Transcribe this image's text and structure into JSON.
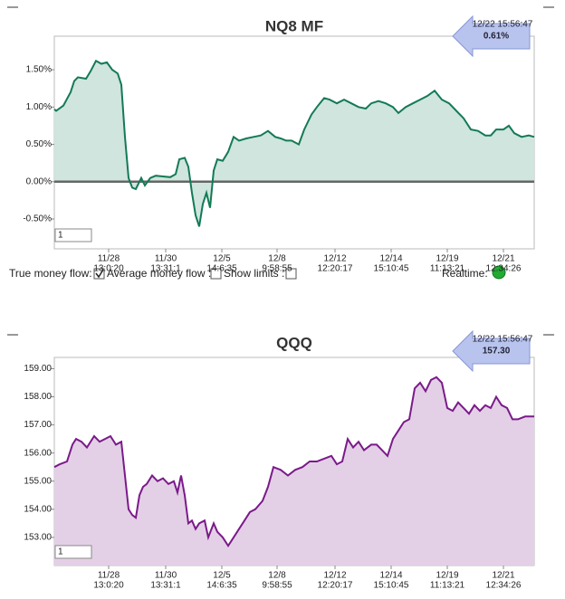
{
  "chart_data": [
    {
      "type": "line",
      "title": "NQ8 MF",
      "color": "#137a55",
      "fill": "#cfe5dd",
      "badge": [
        "12/22 15:56:47",
        "0.61%"
      ],
      "input": "1",
      "xlim": [
        0,
        530
      ],
      "ylim": [
        -0.9,
        1.95
      ],
      "yticks": [
        {
          "value": 1.5,
          "label": "1.50%"
        },
        {
          "value": 1.0,
          "label": "1.00%"
        },
        {
          "value": 0.5,
          "label": "0.50%"
        },
        {
          "value": 0,
          "label": "0.00%"
        },
        {
          "value": -0.5,
          "label": "-0.50%"
        }
      ],
      "xticks": [
        {
          "value": 60,
          "label": "11/28"
        },
        {
          "value": 123,
          "label": "11/30"
        },
        {
          "value": 185,
          "label": "12/5"
        },
        {
          "value": 246,
          "label": "12/8"
        },
        {
          "value": 310,
          "label": "12/12"
        },
        {
          "value": 372,
          "label": "12/14"
        },
        {
          "value": 434,
          "label": "12/19"
        },
        {
          "value": 496,
          "label": "12/21"
        }
      ],
      "xtick_times": [
        "13:0:20",
        "13:31:1",
        "14:6:35",
        "9:58:55",
        "12:20:17",
        "15:10:45",
        "11:13:21",
        "12:34:26"
      ],
      "series": [
        {
          "name": "NQ8 MF",
          "x": [
            0,
            2,
            10,
            18,
            22,
            26,
            35,
            40,
            46,
            52,
            58,
            64,
            70,
            74,
            78,
            82,
            86,
            90,
            96,
            100,
            106,
            112,
            120,
            128,
            134,
            138,
            144,
            148,
            152,
            156,
            160,
            164,
            168,
            172,
            176,
            180,
            186,
            192,
            198,
            204,
            212,
            220,
            228,
            236,
            244,
            250,
            256,
            262,
            270,
            276,
            284,
            290,
            298,
            304,
            312,
            320,
            328,
            336,
            344,
            350,
            358,
            366,
            374,
            380,
            388,
            396,
            404,
            412,
            420,
            428,
            436,
            444,
            452,
            460,
            468,
            476,
            482,
            488,
            496,
            502,
            508,
            516,
            524,
            530
          ],
          "values": [
            0.97,
            0.95,
            1.02,
            1.2,
            1.35,
            1.4,
            1.38,
            1.48,
            1.62,
            1.58,
            1.6,
            1.5,
            1.45,
            1.3,
            0.6,
            0.05,
            -0.08,
            -0.1,
            0.05,
            -0.05,
            0.05,
            0.08,
            0.07,
            0.06,
            0.1,
            0.3,
            0.32,
            0.2,
            -0.15,
            -0.45,
            -0.6,
            -0.3,
            -0.15,
            -0.35,
            0.15,
            0.3,
            0.28,
            0.4,
            0.6,
            0.55,
            0.58,
            0.6,
            0.62,
            0.68,
            0.6,
            0.58,
            0.55,
            0.55,
            0.5,
            0.7,
            0.9,
            1.0,
            1.12,
            1.1,
            1.05,
            1.1,
            1.05,
            1.0,
            0.98,
            1.05,
            1.08,
            1.05,
            1.0,
            0.92,
            1.0,
            1.05,
            1.1,
            1.15,
            1.22,
            1.1,
            1.05,
            0.95,
            0.85,
            0.7,
            0.68,
            0.62,
            0.62,
            0.7,
            0.7,
            0.75,
            0.65,
            0.6,
            0.62,
            0.6
          ]
        }
      ]
    },
    {
      "type": "line",
      "title": "QQQ",
      "color": "#7b1a8a",
      "fill": "#e3d0e6",
      "badge": [
        "12/22 15:56:47",
        "157.30"
      ],
      "input": "1",
      "xlim": [
        0,
        530
      ],
      "ylim": [
        152.0,
        159.4
      ],
      "yticks": [
        {
          "value": 159,
          "label": "159.00"
        },
        {
          "value": 158,
          "label": "158.00"
        },
        {
          "value": 157,
          "label": "157.00"
        },
        {
          "value": 156,
          "label": "156.00"
        },
        {
          "value": 155,
          "label": "155.00"
        },
        {
          "value": 154,
          "label": "154.00"
        },
        {
          "value": 153,
          "label": "153.00"
        }
      ],
      "xticks": [
        {
          "value": 60,
          "label": "11/28"
        },
        {
          "value": 123,
          "label": "11/30"
        },
        {
          "value": 185,
          "label": "12/5"
        },
        {
          "value": 246,
          "label": "12/8"
        },
        {
          "value": 310,
          "label": "12/12"
        },
        {
          "value": 372,
          "label": "12/14"
        },
        {
          "value": 434,
          "label": "12/19"
        },
        {
          "value": 496,
          "label": "12/21"
        }
      ],
      "xtick_times": [
        "13:0:20",
        "13:31:1",
        "14:6:35",
        "9:58:55",
        "12:20:17",
        "15:10:45",
        "11:13:21",
        "12:34:26"
      ],
      "series": [
        {
          "name": "QQQ",
          "x": [
            0,
            6,
            14,
            20,
            24,
            30,
            36,
            44,
            50,
            56,
            62,
            68,
            74,
            78,
            82,
            86,
            90,
            94,
            98,
            102,
            108,
            114,
            120,
            126,
            132,
            136,
            140,
            144,
            148,
            152,
            156,
            160,
            166,
            170,
            176,
            180,
            186,
            192,
            198,
            204,
            210,
            216,
            222,
            230,
            236,
            242,
            250,
            258,
            266,
            274,
            282,
            290,
            298,
            306,
            312,
            318,
            324,
            330,
            336,
            342,
            350,
            356,
            362,
            368,
            374,
            380,
            386,
            392,
            398,
            404,
            410,
            416,
            422,
            428,
            434,
            440,
            446,
            452,
            458,
            464,
            470,
            476,
            482,
            488,
            494,
            500,
            506,
            512,
            520,
            530
          ],
          "values": [
            155.5,
            155.6,
            155.7,
            156.3,
            156.5,
            156.4,
            156.2,
            156.6,
            156.4,
            156.5,
            156.6,
            156.3,
            156.4,
            155.2,
            154.0,
            153.8,
            153.7,
            154.5,
            154.8,
            154.9,
            155.2,
            155.0,
            155.1,
            154.9,
            155.0,
            154.6,
            155.2,
            154.5,
            153.5,
            153.6,
            153.3,
            153.5,
            153.6,
            153.0,
            153.5,
            153.2,
            153.0,
            152.7,
            153.0,
            153.3,
            153.6,
            153.9,
            154.0,
            154.3,
            154.8,
            155.5,
            155.4,
            155.2,
            155.4,
            155.5,
            155.7,
            155.7,
            155.8,
            155.9,
            155.6,
            155.7,
            156.5,
            156.2,
            156.4,
            156.1,
            156.3,
            156.3,
            156.1,
            155.9,
            156.5,
            156.8,
            157.1,
            157.2,
            158.3,
            158.5,
            158.2,
            158.6,
            158.7,
            158.5,
            157.6,
            157.5,
            157.8,
            157.6,
            157.4,
            157.7,
            157.5,
            157.7,
            157.6,
            158.0,
            157.7,
            157.6,
            157.2,
            157.2,
            157.3,
            157.3
          ]
        }
      ]
    }
  ],
  "controls": {
    "true_money_flow": "True money flow:",
    "average_money_flow": "Average money flow :",
    "show_limits": "Show limits :",
    "realtime": "Realtime:"
  }
}
